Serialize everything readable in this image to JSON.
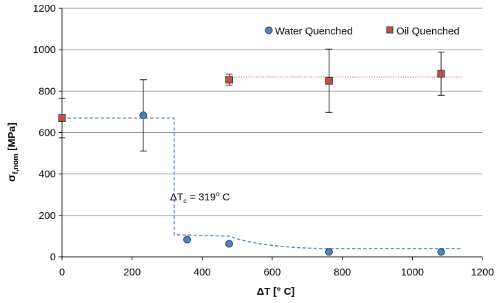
{
  "chart_data": {
    "type": "scatter",
    "xlabel": "ΔT [° C]",
    "ylabel": "σf,nom [MPa]",
    "xlim": [
      0,
      1200
    ],
    "ylim": [
      0,
      1200
    ],
    "x_ticks": [
      "0",
      "200",
      "400",
      "600",
      "800",
      "1000",
      "1200"
    ],
    "y_ticks": [
      "0",
      "200",
      "400",
      "600",
      "800",
      "1000",
      "1200"
    ],
    "grid": "horizontal",
    "legend_position": "top-right",
    "series": [
      {
        "name": "Water Quenched",
        "marker": "circle",
        "color": "#4F81BD",
        "points": [
          {
            "x": 0,
            "y": 670,
            "err": 95
          },
          {
            "x": 232,
            "y": 683,
            "err": 172
          },
          {
            "x": 357,
            "y": 83,
            "err": 0
          },
          {
            "x": 477,
            "y": 63,
            "err": 0
          },
          {
            "x": 762,
            "y": 24,
            "err": 0
          },
          {
            "x": 1082,
            "y": 24,
            "err": 0
          }
        ]
      },
      {
        "name": "Oil Quenched",
        "marker": "square",
        "color": "#C0504D",
        "points": [
          {
            "x": 0,
            "y": 670,
            "err": 95
          },
          {
            "x": 477,
            "y": 855,
            "err": 27
          },
          {
            "x": 762,
            "y": 850,
            "err": 153
          },
          {
            "x": 1082,
            "y": 884,
            "err": 104
          }
        ]
      }
    ],
    "fit_lines": [
      {
        "style": "dashed",
        "color": "#4F81BD",
        "points": [
          [
            0,
            670
          ],
          [
            320,
            670
          ],
          [
            320,
            107
          ],
          [
            477,
            100
          ],
          [
            560,
            62
          ],
          [
            650,
            45
          ],
          [
            760,
            40
          ],
          [
            1140,
            40
          ]
        ]
      },
      {
        "style": "dotted",
        "color": "#E06060",
        "points": [
          [
            477,
            868
          ],
          [
            1140,
            868
          ]
        ]
      }
    ],
    "annotation": {
      "delta": "ΔT",
      "sub": "c",
      "rest_a": " = 319",
      "sup": "o",
      "rest_b": " C",
      "x": 330,
      "y": 290
    }
  }
}
